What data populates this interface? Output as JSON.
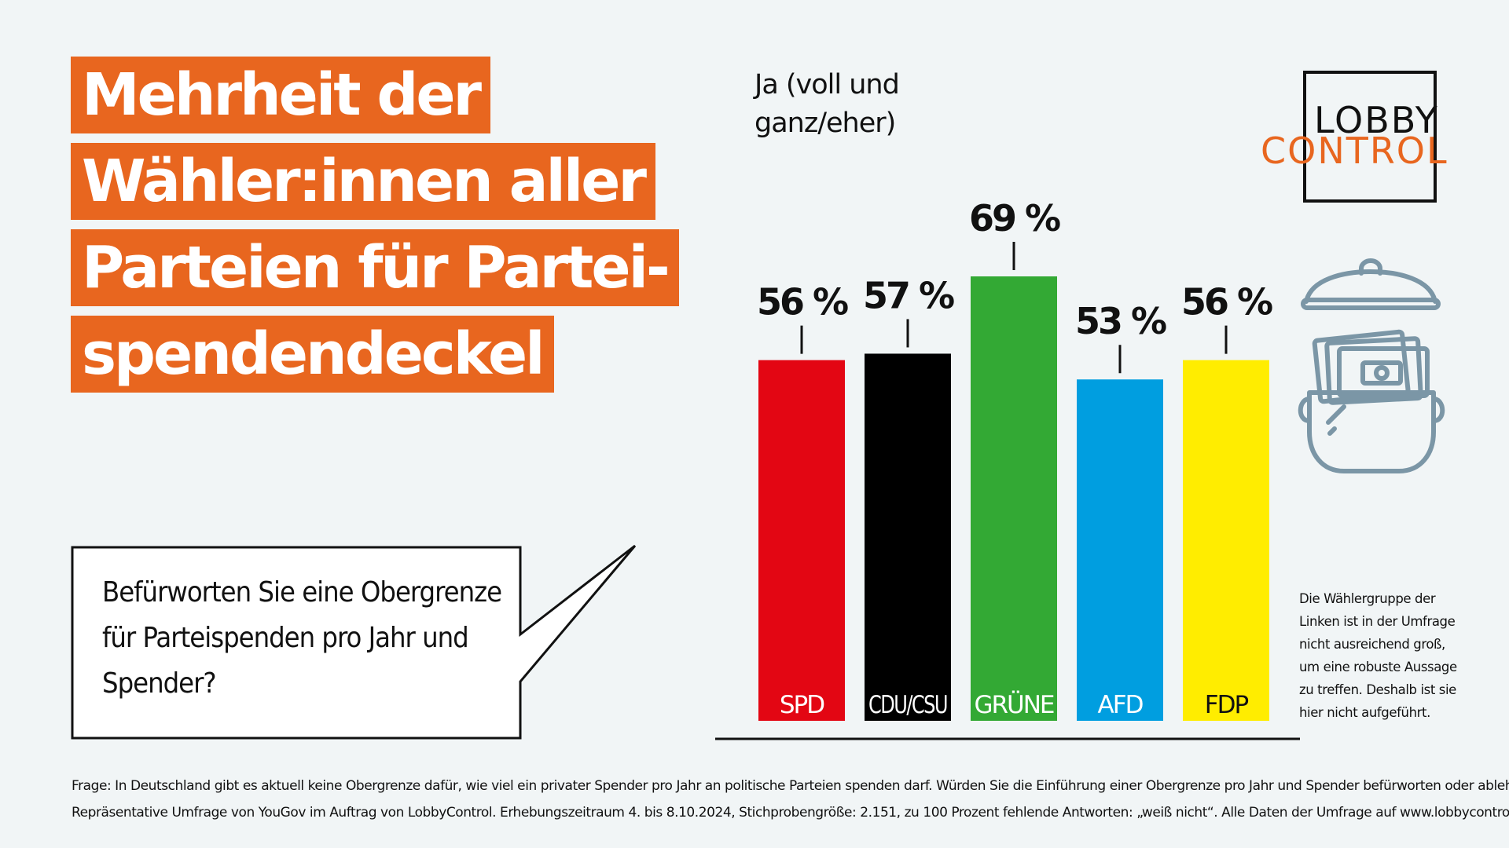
{
  "headline": {
    "lines": [
      "Mehrheit der",
      "Wähler:innen aller",
      "Parteien für Partei-",
      "spendendeckel"
    ]
  },
  "question": {
    "text": "Befürworten Sie eine Obergrenze für Parteispenden pro Jahr und Spender?"
  },
  "logo": {
    "top": "LOBBY",
    "bottom": "CONTROL"
  },
  "note": "Die Wählergruppe der Linken ist in der Umfrage nicht ausreichend groß, um eine robuste Aussage zu treffen. Deshalb ist sie hier nicht aufgeführt.",
  "footer": {
    "line1": "Frage: In Deutschland gibt es aktuell keine Obergrenze dafür, wie viel ein privater Spender pro Jahr an politische Parteien spenden darf. Würden Sie die Einführung einer Obergrenze pro Jahr und Spender befürworten oder ablehnen?",
    "line2": "Repräsentative Umfrage von YouGov im Auftrag von LobbyControl. Erhebungszeitraum 4. bis 8.10.2024, Stichprobengröße: 2.151, zu 100 Prozent fehlende Antworten: „weiß nicht“. Alle Daten der Umfrage auf www.lobbycontrol.de"
  },
  "chart_data": {
    "type": "bar",
    "ylabel": "Ja (voll und ganz/eher)",
    "categories": [
      "SPD",
      "CDU/CSU",
      "GRÜNE",
      "AFD",
      "FDP"
    ],
    "values": [
      56,
      57,
      69,
      53,
      56
    ],
    "value_labels": [
      "56 %",
      "57 %",
      "69 %",
      "53 %",
      "56 %"
    ],
    "colors": [
      "#e30613",
      "#000000",
      "#33a934",
      "#009ee0",
      "#ffed00"
    ],
    "label_colors": [
      "#ffffff",
      "#ffffff",
      "#ffffff",
      "#ffffff",
      "#111111"
    ],
    "ylim": [
      0,
      100
    ],
    "grid": false
  },
  "colors": {
    "accent": "#e8661f",
    "background": "#f1f5f6",
    "icon": "#7b96a6"
  }
}
